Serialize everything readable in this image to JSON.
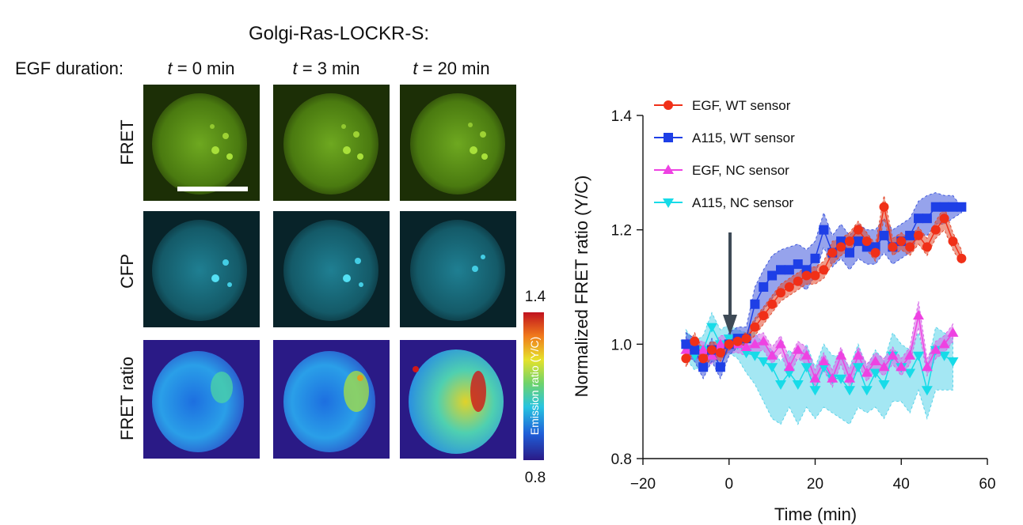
{
  "left_panel": {
    "title": "Golgi-Ras-LOCKR-S:",
    "egf_label": "EGF duration:",
    "time_points": [
      {
        "var": "t",
        "rest": " = 0 min"
      },
      {
        "var": "t",
        "rest": " = 3 min"
      },
      {
        "var": "t",
        "rest": " = 20 min"
      }
    ],
    "rows": [
      "FRET",
      "CFP",
      "FRET ratio"
    ],
    "colorbar": {
      "max_label": "1.4",
      "min_label": "0.8",
      "title": "Emission ratio (Y/C)"
    },
    "colors": {
      "fret": "#7fbf1a",
      "cfp": "#35c4df",
      "ratio_bg": "#2a1a86"
    }
  },
  "chart_data": {
    "type": "line",
    "title": "",
    "xlabel": "Time (min)",
    "ylabel": "Normalized FRET ratio (Y/C)",
    "xlim": [
      -20,
      60
    ],
    "ylim": [
      0.8,
      1.4
    ],
    "xticks": [
      -20,
      0,
      20,
      40,
      60
    ],
    "yticks": [
      0.8,
      1.0,
      1.2,
      1.4
    ],
    "xtick_labels": [
      "−20",
      "0",
      "20",
      "40",
      "60"
    ],
    "ytick_labels": [
      "0.8",
      "1.0",
      "1.2",
      "1.4"
    ],
    "legend_position": "top-left",
    "arrow_at_x": 0,
    "series": [
      {
        "name": "EGF, WT sensor",
        "marker": "circle",
        "color": "#f03018",
        "band": "#e24a2e",
        "x": [
          -10,
          -8,
          -6,
          -4,
          -2,
          0,
          2,
          4,
          6,
          8,
          10,
          12,
          14,
          16,
          18,
          20,
          22,
          24,
          26,
          28,
          30,
          32,
          34,
          36,
          38,
          40,
          42,
          44,
          46,
          48,
          50,
          52,
          54
        ],
        "y": [
          0.975,
          1.005,
          0.975,
          0.99,
          0.985,
          1.0,
          1.005,
          1.01,
          1.03,
          1.05,
          1.07,
          1.09,
          1.1,
          1.11,
          1.12,
          1.12,
          1.13,
          1.16,
          1.17,
          1.18,
          1.2,
          1.18,
          1.16,
          1.24,
          1.17,
          1.18,
          1.17,
          1.19,
          1.17,
          1.2,
          1.22,
          1.18,
          1.15
        ],
        "lo": [
          0.96,
          0.99,
          0.96,
          0.975,
          0.97,
          0.99,
          0.995,
          1.0,
          1.015,
          1.035,
          1.055,
          1.075,
          1.085,
          1.095,
          1.105,
          1.105,
          1.115,
          1.14,
          1.155,
          1.165,
          1.185,
          1.165,
          1.145,
          1.22,
          1.155,
          1.165,
          1.155,
          1.175,
          1.155,
          1.185,
          1.2,
          1.165,
          1.14
        ],
        "hi": [
          0.99,
          1.02,
          0.99,
          1.005,
          1.0,
          1.01,
          1.015,
          1.02,
          1.045,
          1.065,
          1.085,
          1.105,
          1.115,
          1.125,
          1.135,
          1.135,
          1.145,
          1.18,
          1.185,
          1.195,
          1.215,
          1.195,
          1.175,
          1.26,
          1.185,
          1.195,
          1.185,
          1.205,
          1.185,
          1.215,
          1.24,
          1.195,
          1.165
        ]
      },
      {
        "name": "A115, WT sensor",
        "marker": "square",
        "color": "#1e3fe6",
        "band": "#3f58dd",
        "x": [
          -10,
          -8,
          -6,
          -4,
          -2,
          0,
          2,
          4,
          6,
          8,
          10,
          12,
          14,
          16,
          18,
          20,
          22,
          24,
          26,
          28,
          30,
          32,
          34,
          36,
          38,
          40,
          42,
          44,
          46,
          48,
          50,
          52,
          54
        ],
        "y": [
          1.0,
          0.99,
          0.96,
          0.99,
          0.96,
          1.0,
          1.01,
          1.01,
          1.07,
          1.1,
          1.12,
          1.13,
          1.13,
          1.14,
          1.13,
          1.15,
          1.2,
          1.16,
          1.18,
          1.16,
          1.18,
          1.17,
          1.17,
          1.19,
          1.17,
          1.18,
          1.19,
          1.22,
          1.22,
          1.24,
          1.24,
          1.24,
          1.24
        ],
        "lo": [
          0.98,
          0.97,
          0.94,
          0.97,
          0.94,
          0.98,
          0.995,
          1.0,
          1.04,
          1.06,
          1.08,
          1.095,
          1.1,
          1.105,
          1.095,
          1.12,
          1.17,
          1.135,
          1.15,
          1.13,
          1.15,
          1.14,
          1.14,
          1.16,
          1.14,
          1.15,
          1.16,
          1.19,
          1.19,
          1.21,
          1.21,
          1.22,
          1.23
        ],
        "hi": [
          1.02,
          1.01,
          0.98,
          1.01,
          0.98,
          1.02,
          1.03,
          1.03,
          1.1,
          1.13,
          1.155,
          1.165,
          1.17,
          1.175,
          1.165,
          1.18,
          1.23,
          1.19,
          1.21,
          1.19,
          1.21,
          1.2,
          1.2,
          1.22,
          1.2,
          1.21,
          1.22,
          1.25,
          1.26,
          1.265,
          1.26,
          1.26,
          1.24
        ]
      },
      {
        "name": "EGF, NC sensor",
        "marker": "triangle-up",
        "color": "#ee42e2",
        "band": "#d566e8",
        "x": [
          -10,
          -8,
          -6,
          -4,
          -2,
          0,
          2,
          4,
          6,
          8,
          10,
          12,
          14,
          16,
          18,
          20,
          22,
          24,
          26,
          28,
          30,
          32,
          34,
          36,
          38,
          40,
          42,
          44,
          46,
          48,
          50,
          52
        ],
        "y": [
          0.99,
          0.99,
          0.99,
          0.98,
          1.0,
          1.0,
          1.0,
          0.995,
          1.0,
          1.005,
          0.98,
          1.0,
          0.96,
          0.99,
          0.98,
          0.94,
          0.97,
          0.94,
          0.98,
          0.94,
          0.98,
          0.95,
          0.97,
          0.96,
          0.98,
          0.96,
          0.98,
          1.05,
          0.96,
          0.99,
          1.0,
          1.02
        ],
        "lo": [
          0.97,
          0.975,
          0.975,
          0.965,
          0.985,
          0.985,
          0.985,
          0.98,
          0.985,
          0.99,
          0.965,
          0.985,
          0.945,
          0.975,
          0.965,
          0.925,
          0.955,
          0.925,
          0.965,
          0.925,
          0.965,
          0.935,
          0.955,
          0.945,
          0.965,
          0.945,
          0.965,
          1.03,
          0.945,
          0.975,
          0.985,
          1.005
        ],
        "hi": [
          1.01,
          1.005,
          1.005,
          0.995,
          1.015,
          1.015,
          1.015,
          1.01,
          1.015,
          1.02,
          0.995,
          1.015,
          0.975,
          1.005,
          0.995,
          0.955,
          0.985,
          0.955,
          0.995,
          0.955,
          0.995,
          0.965,
          0.985,
          0.975,
          0.995,
          0.975,
          0.995,
          1.075,
          0.975,
          1.005,
          1.015,
          1.035
        ]
      },
      {
        "name": "A115, NC sensor",
        "marker": "triangle-down",
        "color": "#17dbe8",
        "band": "#5ad3ea",
        "x": [
          -10,
          -8,
          -6,
          -4,
          -2,
          0,
          2,
          4,
          6,
          8,
          10,
          12,
          14,
          16,
          18,
          20,
          22,
          24,
          26,
          28,
          30,
          32,
          34,
          36,
          38,
          40,
          42,
          44,
          46,
          48,
          50,
          52
        ],
        "y": [
          1.0,
          0.98,
          0.99,
          1.03,
          1.0,
          1.01,
          1.0,
          0.985,
          0.98,
          0.97,
          0.96,
          0.93,
          0.95,
          0.93,
          0.96,
          0.92,
          0.96,
          0.94,
          0.94,
          0.92,
          0.96,
          0.92,
          0.95,
          0.93,
          0.98,
          0.96,
          0.95,
          0.98,
          0.92,
          0.99,
          0.98,
          0.97
        ],
        "lo": [
          0.975,
          0.955,
          0.965,
          1.005,
          0.975,
          0.985,
          0.975,
          0.95,
          0.93,
          0.9,
          0.87,
          0.86,
          0.89,
          0.86,
          0.89,
          0.87,
          0.89,
          0.88,
          0.87,
          0.86,
          0.89,
          0.88,
          0.89,
          0.87,
          0.9,
          0.9,
          0.88,
          0.92,
          0.87,
          0.92,
          0.92,
          0.92
        ],
        "hi": [
          1.025,
          1.005,
          1.015,
          1.055,
          1.025,
          1.035,
          1.025,
          1.02,
          1.02,
          1.0,
          0.99,
          0.97,
          0.99,
          0.97,
          1.0,
          0.96,
          1.0,
          0.98,
          0.98,
          0.96,
          1.0,
          0.96,
          0.99,
          0.97,
          1.02,
          1.0,
          0.99,
          1.02,
          0.96,
          1.03,
          1.02,
          1.01
        ]
      }
    ]
  }
}
